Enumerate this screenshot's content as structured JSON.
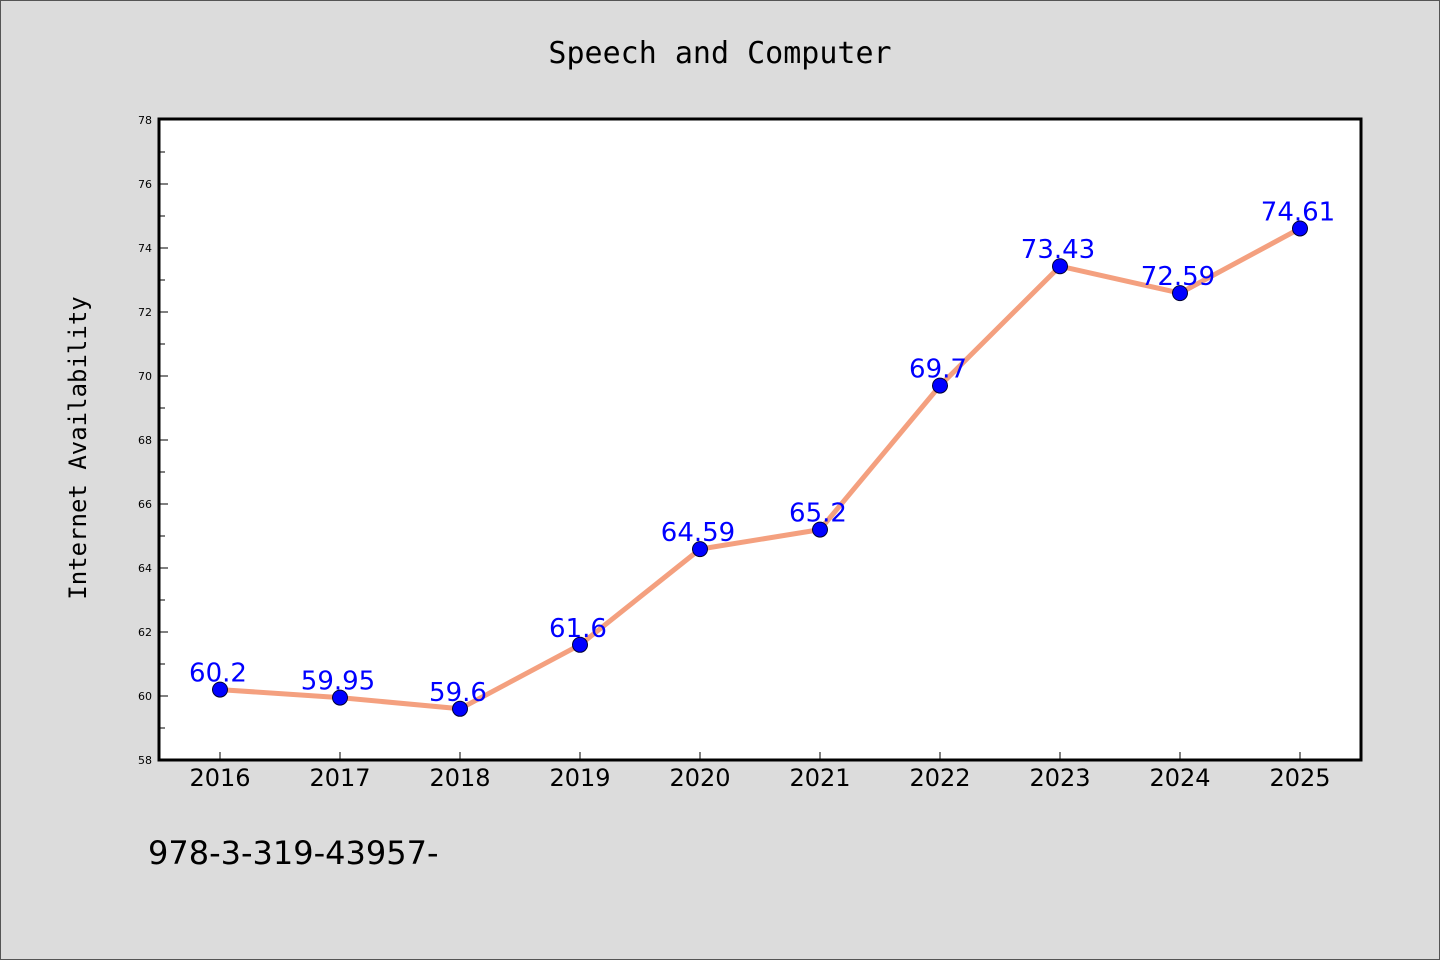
{
  "colors": {
    "background": "#dcdcdc",
    "plot_background": "#ffffff",
    "line": "#f4a07f",
    "marker": "#0000ff",
    "data_label": "#0000ff",
    "text": "#000000"
  },
  "footer_text": "978-3-319-43957-",
  "chart_data": {
    "type": "line",
    "title": "Speech and Computer",
    "xlabel": "",
    "ylabel": "Internet Availability",
    "categories": [
      "2016",
      "2017",
      "2018",
      "2019",
      "2020",
      "2021",
      "2022",
      "2023",
      "2024",
      "2025"
    ],
    "series": [
      {
        "values": [
          60.2,
          59.95,
          59.6,
          61.6,
          64.59,
          65.2,
          69.7,
          73.43,
          72.59,
          74.61
        ],
        "labels": [
          "60.2",
          "59.95",
          "59.6",
          "61.6",
          "64.59",
          "65.2",
          "69.7",
          "73.43",
          "72.59",
          "74.61"
        ]
      }
    ],
    "ylim": [
      58,
      78
    ],
    "yticks": [
      "58",
      "60",
      "62",
      "64",
      "66",
      "68",
      "70",
      "72",
      "74",
      "76",
      "78"
    ],
    "grid": false,
    "legend": "none"
  }
}
